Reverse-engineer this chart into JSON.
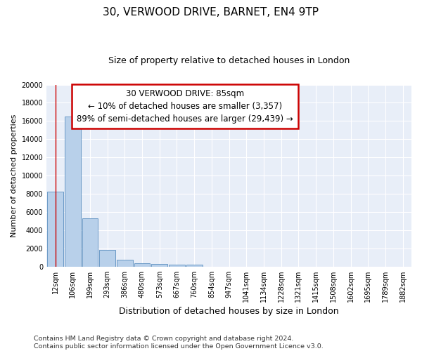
{
  "title": "30, VERWOOD DRIVE, BARNET, EN4 9TP",
  "subtitle": "Size of property relative to detached houses in London",
  "xlabel": "Distribution of detached houses by size in London",
  "ylabel": "Number of detached properties",
  "categories": [
    "12sqm",
    "106sqm",
    "199sqm",
    "293sqm",
    "386sqm",
    "480sqm",
    "573sqm",
    "667sqm",
    "760sqm",
    "854sqm",
    "947sqm",
    "1041sqm",
    "1134sqm",
    "1228sqm",
    "1321sqm",
    "1415sqm",
    "1508sqm",
    "1602sqm",
    "1695sqm",
    "1789sqm",
    "1882sqm"
  ],
  "values": [
    8200,
    16500,
    5300,
    1850,
    750,
    380,
    280,
    215,
    185,
    0,
    0,
    0,
    0,
    0,
    0,
    0,
    0,
    0,
    0,
    0,
    0
  ],
  "bar_color": "#b8d0ea",
  "bar_edge_color": "#5a8fc0",
  "annotation_line1": "30 VERWOOD DRIVE: 85sqm",
  "annotation_line2": "← 10% of detached houses are smaller (3,357)",
  "annotation_line3": "89% of semi-detached houses are larger (29,439) →",
  "annotation_box_facecolor": "#ffffff",
  "annotation_box_edgecolor": "#cc0000",
  "red_vline_x": 0,
  "ylim": [
    0,
    20000
  ],
  "yticks": [
    0,
    2000,
    4000,
    6000,
    8000,
    10000,
    12000,
    14000,
    16000,
    18000,
    20000
  ],
  "fig_facecolor": "#ffffff",
  "ax_facecolor": "#e8eef8",
  "grid_color": "#ffffff",
  "title_fontsize": 11,
  "subtitle_fontsize": 9,
  "xlabel_fontsize": 9,
  "ylabel_fontsize": 8,
  "tick_fontsize": 7,
  "annotation_fontsize": 8.5,
  "footer_fontsize": 6.8,
  "footer": "Contains HM Land Registry data © Crown copyright and database right 2024.\nContains public sector information licensed under the Open Government Licence v3.0."
}
